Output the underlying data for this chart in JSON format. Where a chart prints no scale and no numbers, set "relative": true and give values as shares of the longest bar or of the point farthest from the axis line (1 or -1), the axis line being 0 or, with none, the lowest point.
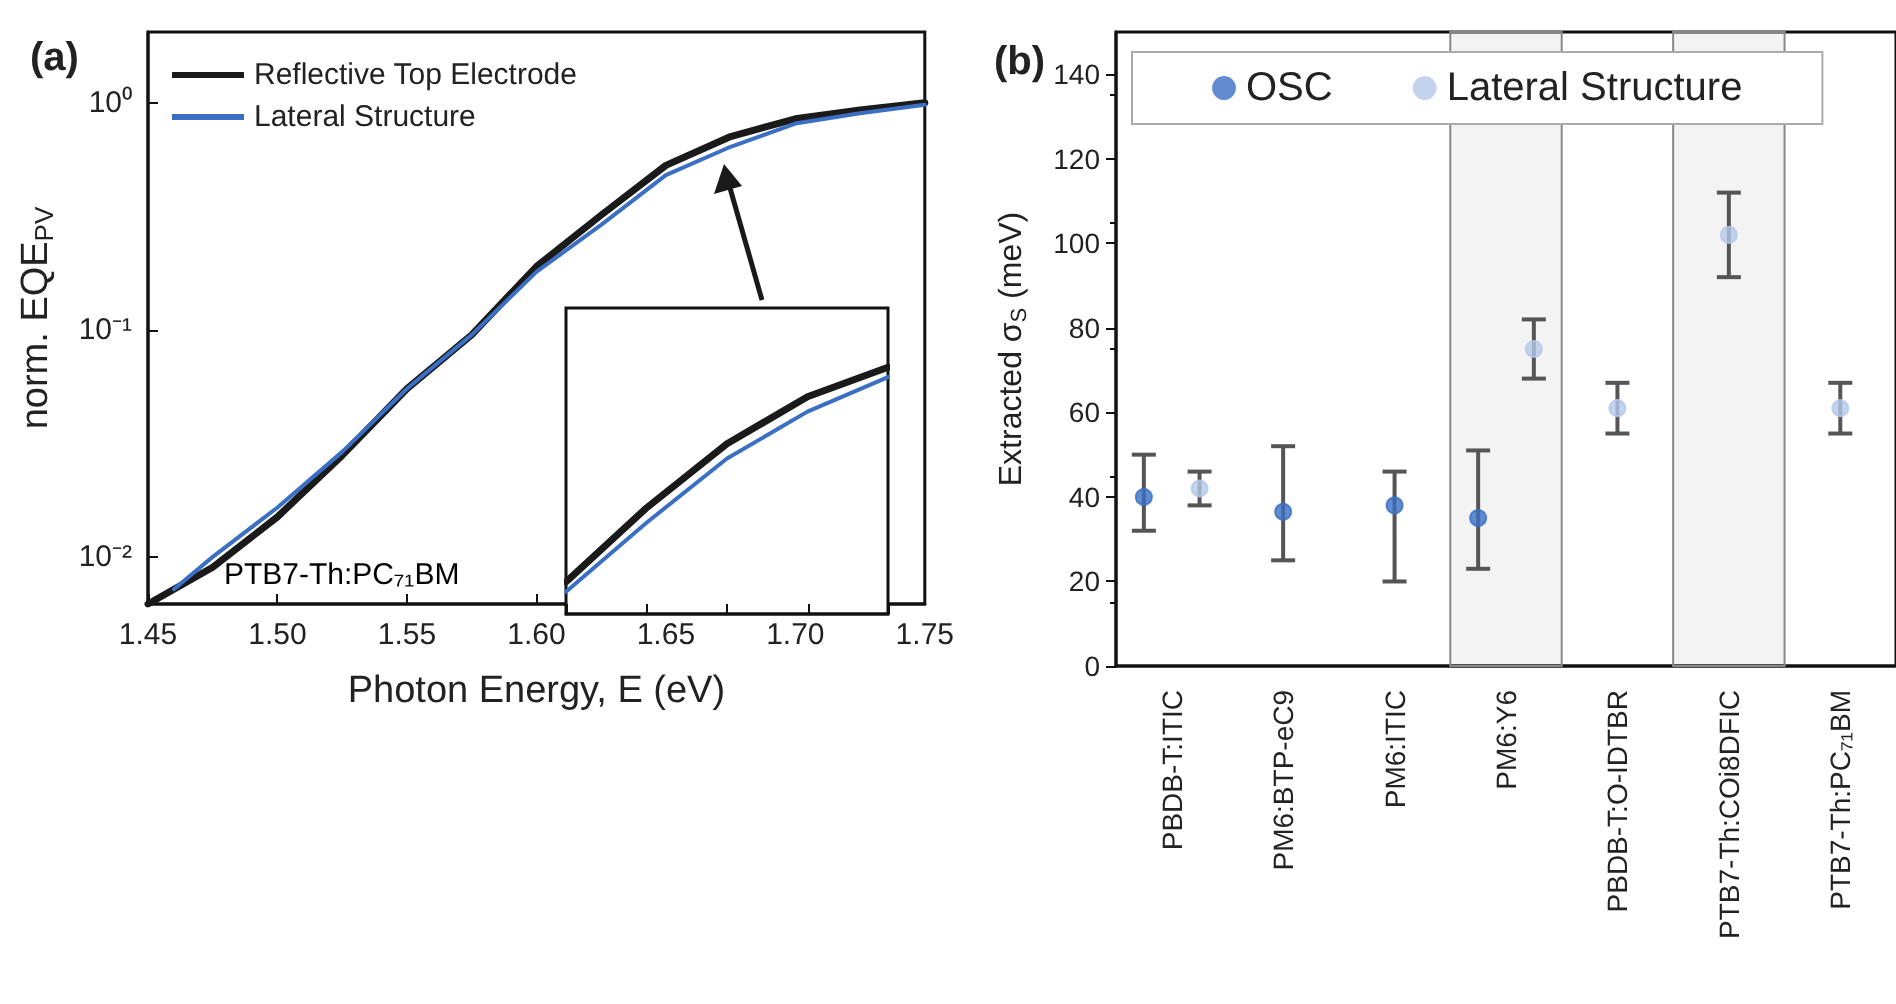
{
  "chart_data": [
    {
      "type": "line",
      "title": "(a)",
      "xlabel": "Photon Energy, E (eV)",
      "ylabel": "norm. EQE$_{PV}$",
      "log": "y",
      "legend": "top left",
      "grid": false,
      "marker": "none",
      "line_style": "solid",
      "xlim": [
        1.45,
        1.75
      ],
      "xticks": [
        {
          "value": 1.45,
          "label": "1.45"
        },
        {
          "value": 1.5,
          "label": "1.50"
        },
        {
          "value": 1.55,
          "label": "1.55"
        },
        {
          "value": 1.6,
          "label": "1.60"
        },
        {
          "value": 1.65,
          "label": "1.65"
        },
        {
          "value": 1.7,
          "label": "1.70"
        },
        {
          "value": 1.75,
          "label": "1.75"
        }
      ],
      "ylim": [
        0.0062,
        2.05
      ],
      "yticks": [
        {
          "value": 0.01,
          "label": "10⁻²"
        },
        {
          "value": 0.1,
          "label": "10⁻¹"
        },
        {
          "value": 1,
          "label": "10⁰"
        }
      ],
      "annotations": [
        "PTB7-Th:PC₇₁BM"
      ],
      "series": [
        {
          "name": "Reflective Top Electrode",
          "color": "#1a1a1a",
          "x": [
            1.45,
            1.475,
            1.5,
            1.525,
            1.55,
            1.575,
            1.6,
            1.625,
            1.65,
            1.675,
            1.7,
            1.725,
            1.75
          ],
          "values": [
            0.0062,
            0.009,
            0.015,
            0.028,
            0.055,
            0.095,
            0.19,
            0.32,
            0.53,
            0.71,
            0.85,
            0.93,
            1.0
          ]
        },
        {
          "name": "Lateral Structure",
          "color": "#3a6fc4",
          "x": [
            1.46,
            1.475,
            1.5,
            1.525,
            1.55,
            1.575,
            1.6,
            1.625,
            1.65,
            1.675,
            1.7,
            1.725,
            1.75
          ],
          "values": [
            0.0072,
            0.01,
            0.0165,
            0.029,
            0.055,
            0.095,
            0.18,
            0.29,
            0.48,
            0.64,
            0.81,
            0.9,
            0.98
          ]
        }
      ]
    },
    {
      "type": "scatter",
      "title": "(b)",
      "ylabel": "Extracted σ$_{S}$ (meV)",
      "legend": "top left",
      "grid": false,
      "marker": "circle",
      "categories": [
        "PBDB-T:ITIC",
        "PM6:BTP-eC9",
        "PM6:ITIC",
        "PM6:Y6",
        "PBDB-T:O-IDTBR",
        "PTB7-Th:COi8DFIC",
        "PTB7-Th:PC₇₁BM"
      ],
      "ylim": [
        0,
        150
      ],
      "yticks": [
        0,
        20,
        40,
        60,
        80,
        100,
        120,
        140
      ],
      "bands": [
        {
          "axis": "x",
          "from": "PM6:Y6",
          "to": "PM6:Y6",
          "color": "#888888"
        },
        {
          "axis": "x",
          "from": "PTB7-Th:COi8DFIC",
          "to": "PTB7-Th:COi8DFIC",
          "color": "#888888"
        }
      ],
      "series": [
        {
          "name": "OSC",
          "color": "#3a6fc4",
          "values": [
            40,
            36.5,
            38,
            35,
            null,
            null,
            null
          ],
          "errors": [
            [
              32,
              50
            ],
            [
              25,
              52
            ],
            [
              20,
              46
            ],
            [
              23,
              51
            ],
            null,
            null,
            null
          ]
        },
        {
          "name": "Lateral Structure",
          "color": "#b4c8ea",
          "values": [
            42,
            null,
            null,
            75,
            61,
            102,
            61
          ],
          "errors": [
            [
              38,
              46
            ],
            null,
            null,
            [
              68,
              82
            ],
            [
              55,
              67
            ],
            [
              92,
              112
            ],
            [
              55,
              67
            ]
          ]
        }
      ]
    },
    {
      "type": "line",
      "relative": true,
      "tick_labels": false,
      "legend": false,
      "marker": "none",
      "line_style": "solid",
      "categories": [
        null,
        null,
        null,
        null,
        null
      ],
      "series": [
        {
          "color": "#1a1a1a",
          "values": [
            0.13,
            0.43,
            0.69,
            0.88,
            1
          ]
        },
        {
          "color": "#3a6fc4",
          "values": [
            0.09,
            0.37,
            0.63,
            0.82,
            0.96
          ]
        }
      ]
    }
  ]
}
